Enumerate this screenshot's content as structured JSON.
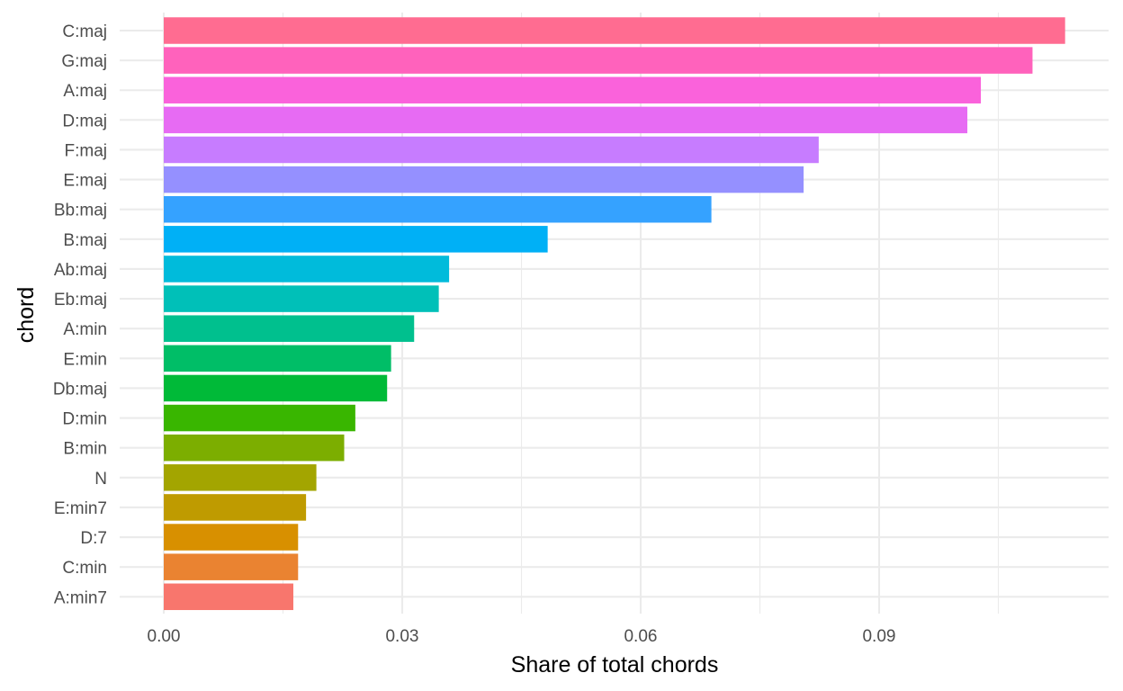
{
  "chart_data": {
    "type": "bar",
    "orientation": "horizontal",
    "title": "",
    "xlabel": "Share of total chords",
    "ylabel": "chord",
    "xlim": [
      0,
      0.1136
    ],
    "x_ticks": [
      0.0,
      0.03,
      0.06,
      0.09
    ],
    "x_tick_labels": [
      "0.00",
      "0.03",
      "0.06",
      "0.09"
    ],
    "grid": true,
    "legend": "none",
    "categories": [
      "C:maj",
      "G:maj",
      "A:maj",
      "D:maj",
      "F:maj",
      "E:maj",
      "Bb:maj",
      "B:maj",
      "Ab:maj",
      "Eb:maj",
      "A:min",
      "E:min",
      "Db:maj",
      "D:min",
      "B:min",
      "N",
      "E:min7",
      "D:7",
      "C:min",
      "A:min7"
    ],
    "values": [
      0.1134,
      0.1093,
      0.1028,
      0.1011,
      0.0824,
      0.0805,
      0.0689,
      0.0483,
      0.0359,
      0.0346,
      0.0315,
      0.0286,
      0.0281,
      0.0241,
      0.0227,
      0.0192,
      0.0179,
      0.0169,
      0.0169,
      0.0163
    ],
    "colors": [
      "#FF6C91",
      "#FF62BC",
      "#FA62DB",
      "#E76BF3",
      "#C77CFF",
      "#9590FF",
      "#35A2FF",
      "#00B0F6",
      "#00BBDB",
      "#00C0B8",
      "#00C08E",
      "#00BE67",
      "#00BA38",
      "#39B600",
      "#7CAE00",
      "#A3A500",
      "#BF9B00",
      "#D89000",
      "#EA8331",
      "#F8766D"
    ]
  }
}
